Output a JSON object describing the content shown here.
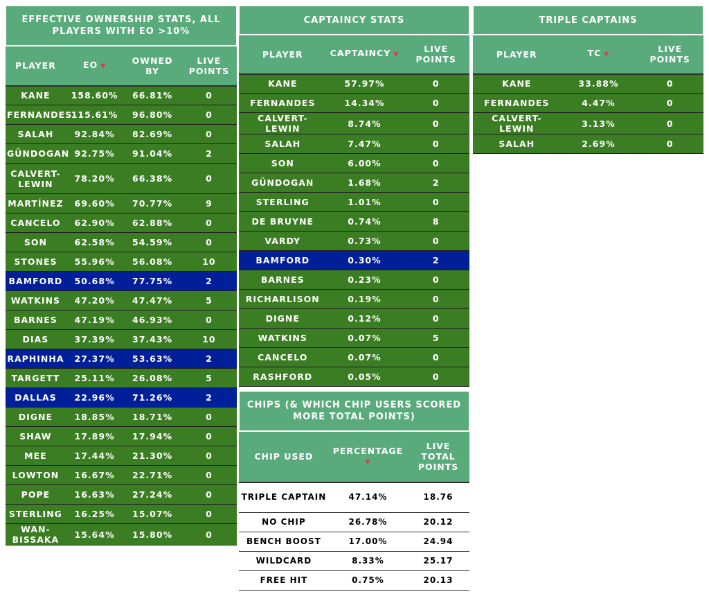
{
  "eo": {
    "title": "EFFECTIVE OWNERSHIP STATS, ALL PLAYERS WITH EO >10%",
    "headers": {
      "player": "PLAYER",
      "eo": "EO",
      "owned": "OWNED BY",
      "live": "LIVE POINTS"
    },
    "rows": [
      {
        "player": "KANE",
        "eo": "158.60%",
        "owned": "66.81%",
        "live": "0",
        "highlight": false
      },
      {
        "player": "FERNANDES",
        "eo": "115.61%",
        "owned": "96.80%",
        "live": "0",
        "highlight": false
      },
      {
        "player": "SALAH",
        "eo": "92.84%",
        "owned": "82.69%",
        "live": "0",
        "highlight": false
      },
      {
        "player": "GÜNDOGAN",
        "eo": "92.75%",
        "owned": "91.04%",
        "live": "2",
        "highlight": false
      },
      {
        "player": "CALVERT-LEWIN",
        "eo": "78.20%",
        "owned": "66.38%",
        "live": "0",
        "highlight": false
      },
      {
        "player": "MARTÍNEZ",
        "eo": "69.60%",
        "owned": "70.77%",
        "live": "9",
        "highlight": false
      },
      {
        "player": "CANCELO",
        "eo": "62.90%",
        "owned": "62.88%",
        "live": "0",
        "highlight": false
      },
      {
        "player": "SON",
        "eo": "62.58%",
        "owned": "54.59%",
        "live": "0",
        "highlight": false
      },
      {
        "player": "STONES",
        "eo": "55.96%",
        "owned": "56.08%",
        "live": "10",
        "highlight": false
      },
      {
        "player": "BAMFORD",
        "eo": "50.68%",
        "owned": "77.75%",
        "live": "2",
        "highlight": true
      },
      {
        "player": "WATKINS",
        "eo": "47.20%",
        "owned": "47.47%",
        "live": "5",
        "highlight": false
      },
      {
        "player": "BARNES",
        "eo": "47.19%",
        "owned": "46.93%",
        "live": "0",
        "highlight": false
      },
      {
        "player": "DIAS",
        "eo": "37.39%",
        "owned": "37.43%",
        "live": "10",
        "highlight": false
      },
      {
        "player": "RAPHINHA",
        "eo": "27.37%",
        "owned": "53.63%",
        "live": "2",
        "highlight": true
      },
      {
        "player": "TARGETT",
        "eo": "25.11%",
        "owned": "26.08%",
        "live": "5",
        "highlight": false
      },
      {
        "player": "DALLAS",
        "eo": "22.96%",
        "owned": "71.26%",
        "live": "2",
        "highlight": true
      },
      {
        "player": "DIGNE",
        "eo": "18.85%",
        "owned": "18.71%",
        "live": "0",
        "highlight": false
      },
      {
        "player": "SHAW",
        "eo": "17.89%",
        "owned": "17.94%",
        "live": "0",
        "highlight": false
      },
      {
        "player": "MEE",
        "eo": "17.44%",
        "owned": "21.30%",
        "live": "0",
        "highlight": false
      },
      {
        "player": "LOWTON",
        "eo": "16.67%",
        "owned": "22.71%",
        "live": "0",
        "highlight": false
      },
      {
        "player": "POPE",
        "eo": "16.63%",
        "owned": "27.24%",
        "live": "0",
        "highlight": false
      },
      {
        "player": "STERLING",
        "eo": "16.25%",
        "owned": "15.07%",
        "live": "0",
        "highlight": false
      },
      {
        "player": "WAN-BISSAKA",
        "eo": "15.64%",
        "owned": "15.80%",
        "live": "0",
        "highlight": false
      }
    ]
  },
  "captaincy": {
    "title": "CAPTAINCY STATS",
    "headers": {
      "player": "PLAYER",
      "captaincy": "CAPTAINCY",
      "live": "LIVE POINTS"
    },
    "rows": [
      {
        "player": "KANE",
        "captaincy": "57.97%",
        "live": "0",
        "highlight": false
      },
      {
        "player": "FERNANDES",
        "captaincy": "14.34%",
        "live": "0",
        "highlight": false
      },
      {
        "player": "CALVERT-LEWIN",
        "captaincy": "8.74%",
        "live": "0",
        "highlight": false
      },
      {
        "player": "SALAH",
        "captaincy": "7.47%",
        "live": "0",
        "highlight": false
      },
      {
        "player": "SON",
        "captaincy": "6.00%",
        "live": "0",
        "highlight": false
      },
      {
        "player": "GÜNDOGAN",
        "captaincy": "1.68%",
        "live": "2",
        "highlight": false
      },
      {
        "player": "STERLING",
        "captaincy": "1.01%",
        "live": "0",
        "highlight": false
      },
      {
        "player": "DE BRUYNE",
        "captaincy": "0.74%",
        "live": "8",
        "highlight": false
      },
      {
        "player": "VARDY",
        "captaincy": "0.73%",
        "live": "0",
        "highlight": false
      },
      {
        "player": "BAMFORD",
        "captaincy": "0.30%",
        "live": "2",
        "highlight": true
      },
      {
        "player": "BARNES",
        "captaincy": "0.23%",
        "live": "0",
        "highlight": false
      },
      {
        "player": "RICHARLISON",
        "captaincy": "0.19%",
        "live": "0",
        "highlight": false
      },
      {
        "player": "DIGNE",
        "captaincy": "0.12%",
        "live": "0",
        "highlight": false
      },
      {
        "player": "WATKINS",
        "captaincy": "0.07%",
        "live": "5",
        "highlight": false
      },
      {
        "player": "CANCELO",
        "captaincy": "0.07%",
        "live": "0",
        "highlight": false
      },
      {
        "player": "RASHFORD",
        "captaincy": "0.05%",
        "live": "0",
        "highlight": false
      }
    ]
  },
  "triple": {
    "title": "TRIPLE CAPTAINS",
    "headers": {
      "player": "PLAYER",
      "tc": "TC",
      "live": "LIVE POINTS"
    },
    "rows": [
      {
        "player": "KANE",
        "tc": "33.88%",
        "live": "0"
      },
      {
        "player": "FERNANDES",
        "tc": "4.47%",
        "live": "0"
      },
      {
        "player": "CALVERT-LEWIN",
        "tc": "3.13%",
        "live": "0"
      },
      {
        "player": "SALAH",
        "tc": "2.69%",
        "live": "0"
      }
    ]
  },
  "chips": {
    "title": "CHIPS (& WHICH CHIP USERS SCORED MORE TOTAL POINTS)",
    "headers": {
      "chip": "CHIP USED",
      "percentage": "PERCENTAGE",
      "live": "LIVE TOTAL POINTS"
    },
    "rows": [
      {
        "chip": "TRIPLE CAPTAIN",
        "percentage": "47.14%",
        "live": "18.76"
      },
      {
        "chip": "NO CHIP",
        "percentage": "26.78%",
        "live": "20.12"
      },
      {
        "chip": "BENCH BOOST",
        "percentage": "17.00%",
        "live": "24.94"
      },
      {
        "chip": "WILDCARD",
        "percentage": "8.33%",
        "live": "25.17"
      },
      {
        "chip": "FREE HIT",
        "percentage": "0.75%",
        "live": "20.13"
      }
    ]
  },
  "sort_icon": "sort-desc-icon",
  "colors": {
    "header": "#5aab7b",
    "row": "#3b7d23",
    "highlight": "#001f99",
    "sort_arrow": "#e0384f"
  }
}
